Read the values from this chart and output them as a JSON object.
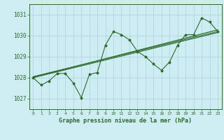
{
  "xlabel": "Graphe pression niveau de la mer (hPa)",
  "xlim": [
    -0.5,
    23.5
  ],
  "ylim": [
    1026.5,
    1031.5
  ],
  "yticks": [
    1027,
    1028,
    1029,
    1030,
    1031
  ],
  "xticks": [
    0,
    1,
    2,
    3,
    4,
    5,
    6,
    7,
    8,
    9,
    10,
    11,
    12,
    13,
    14,
    15,
    16,
    17,
    18,
    19,
    20,
    21,
    22,
    23
  ],
  "bg_color": "#ceedf3",
  "grid_color": "#aad4db",
  "line_color": "#2d6a2d",
  "data_x": [
    0,
    1,
    2,
    3,
    4,
    5,
    6,
    7,
    8,
    9,
    10,
    11,
    12,
    13,
    14,
    15,
    16,
    17,
    18,
    19,
    20,
    21,
    22,
    23
  ],
  "data_y": [
    1028.0,
    1027.65,
    1027.85,
    1028.2,
    1028.2,
    1027.75,
    1027.05,
    1028.15,
    1028.25,
    1029.55,
    1030.2,
    1030.05,
    1029.8,
    1029.25,
    1029.0,
    1028.65,
    1028.35,
    1028.75,
    1029.55,
    1030.05,
    1030.05,
    1030.85,
    1030.65,
    1030.2
  ],
  "trend1_x": [
    0,
    23
  ],
  "trend1_y": [
    1028.0,
    1030.15
  ],
  "trend2_x": [
    0,
    23
  ],
  "trend2_y": [
    1028.05,
    1030.2
  ],
  "trend3_x": [
    0,
    23
  ],
  "trend3_y": [
    1028.02,
    1030.28
  ]
}
